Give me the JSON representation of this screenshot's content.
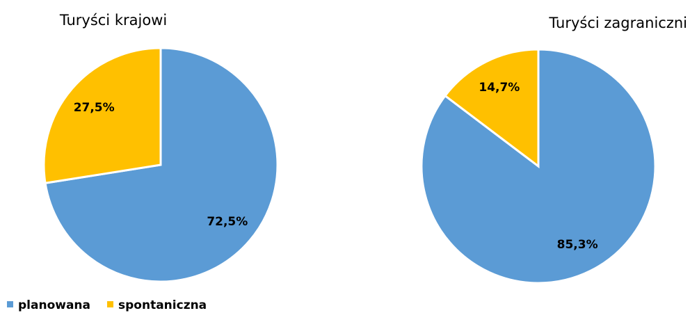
{
  "chart_data": [
    {
      "type": "pie",
      "title": "Turyści krajowi",
      "categories": [
        "planowana",
        "spontaniczna"
      ],
      "values": [
        72.5,
        27.5
      ],
      "value_labels": [
        "72,5%",
        "27,5%"
      ],
      "colors": [
        "#5b9bd5",
        "#ffc000"
      ]
    },
    {
      "type": "pie",
      "title": "Turyści zagraniczni",
      "categories": [
        "planowana",
        "spontaniczna"
      ],
      "values": [
        85.3,
        14.7
      ],
      "value_labels": [
        "85,3%",
        "14,7%"
      ],
      "colors": [
        "#5b9bd5",
        "#ffc000"
      ]
    }
  ]
}
